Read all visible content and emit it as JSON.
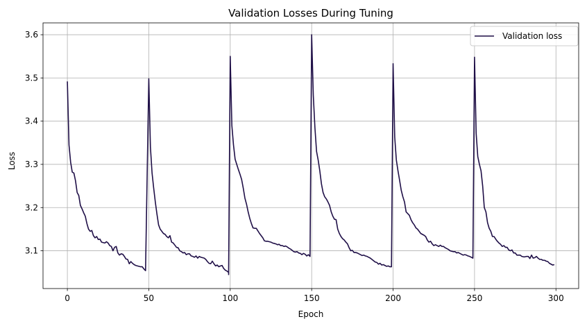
{
  "chart_data": {
    "type": "line",
    "title": "Validation Losses During Tuning",
    "xlabel": "Epoch",
    "ylabel": "Loss",
    "xlim": [
      -14.95,
      313.95
    ],
    "ylim": [
      3.0126,
      3.6274
    ],
    "xticks": [
      0,
      50,
      100,
      150,
      200,
      250,
      300
    ],
    "yticks": [
      3.1,
      3.2,
      3.3,
      3.4,
      3.5,
      3.6
    ],
    "grid": true,
    "legend_position": "top-right",
    "series": [
      {
        "name": "Validation loss",
        "color": "#1f0f47",
        "cycles": [
          {
            "start": 0,
            "values": [
              3.492,
              3.345,
              3.305,
              3.282,
              3.28,
              3.262,
              3.235,
              3.228,
              3.205,
              3.197,
              3.188,
              3.18,
              3.163,
              3.15,
              3.145,
              3.147,
              3.135,
              3.13,
              3.133,
              3.126,
              3.127,
              3.12,
              3.119,
              3.118,
              3.121,
              3.118,
              3.112,
              3.11,
              3.1,
              3.108,
              3.11,
              3.095,
              3.09,
              3.093,
              3.092,
              3.087,
              3.081,
              3.08,
              3.07,
              3.075,
              3.071,
              3.068,
              3.066,
              3.065,
              3.064,
              3.063,
              3.063,
              3.058,
              3.054
            ]
          },
          {
            "start": 50,
            "values": [
              3.498,
              3.34,
              3.28,
              3.245,
              3.213,
              3.185,
              3.16,
              3.15,
              3.145,
              3.14,
              3.138,
              3.133,
              3.13,
              3.135,
              3.12,
              3.118,
              3.113,
              3.108,
              3.107,
              3.1,
              3.098,
              3.095,
              3.096,
              3.091,
              3.093,
              3.093,
              3.088,
              3.087,
              3.085,
              3.088,
              3.083,
              3.087,
              3.085,
              3.084,
              3.083,
              3.08,
              3.075,
              3.071,
              3.07,
              3.076,
              3.07,
              3.065,
              3.067,
              3.063,
              3.065,
              3.066,
              3.059,
              3.055,
              3.053,
              3.05
            ]
          },
          {
            "start": 99,
            "values": [
              3.045,
              3.55,
              3.39,
              3.345,
              3.312,
              3.3,
              3.288,
              3.277,
              3.265,
              3.245,
              3.222,
              3.208,
              3.19,
              3.175,
              3.163,
              3.153,
              3.152,
              3.152,
              3.146,
              3.14,
              3.135,
              3.13,
              3.123,
              3.122,
              3.122,
              3.121,
              3.12,
              3.118,
              3.117,
              3.116,
              3.114,
              3.115,
              3.112,
              3.112,
              3.11,
              3.111,
              3.109,
              3.106,
              3.104,
              3.101,
              3.098,
              3.097,
              3.098,
              3.095,
              3.094,
              3.091,
              3.094,
              3.092,
              3.088,
              3.091,
              3.087
            ]
          },
          {
            "start": 150,
            "values": [
              3.6,
              3.46,
              3.385,
              3.33,
              3.31,
              3.285,
              3.255,
              3.235,
              3.225,
              3.22,
              3.213,
              3.205,
              3.19,
              3.18,
              3.173,
              3.172,
              3.15,
              3.14,
              3.133,
              3.128,
              3.125,
              3.12,
              3.116,
              3.107,
              3.1,
              3.101,
              3.096,
              3.096,
              3.095,
              3.093,
              3.091,
              3.089,
              3.09,
              3.088,
              3.087,
              3.085,
              3.083,
              3.08,
              3.077,
              3.074,
              3.073,
              3.069,
              3.071,
              3.067,
              3.068,
              3.066,
              3.064,
              3.065,
              3.063
            ]
          },
          {
            "start": 199,
            "values": [
              3.063,
              3.533,
              3.363,
              3.31,
              3.285,
              3.263,
              3.24,
              3.225,
              3.213,
              3.19,
              3.186,
              3.182,
              3.172,
              3.165,
              3.16,
              3.153,
              3.15,
              3.145,
              3.14,
              3.138,
              3.136,
              3.133,
              3.125,
              3.12,
              3.122,
              3.116,
              3.112,
              3.114,
              3.112,
              3.11,
              3.113,
              3.11,
              3.11,
              3.107,
              3.105,
              3.103,
              3.1,
              3.099,
              3.098,
              3.098,
              3.095,
              3.096,
              3.094,
              3.092,
              3.09,
              3.091,
              3.09,
              3.088,
              3.087,
              3.085,
              3.083
            ]
          },
          {
            "start": 250,
            "values": [
              3.548,
              3.372,
              3.318,
              3.3,
              3.285,
              3.25,
              3.2,
              3.19,
              3.165,
              3.152,
              3.145,
              3.133,
              3.133,
              3.127,
              3.122,
              3.118,
              3.115,
              3.11,
              3.112,
              3.108,
              3.108,
              3.102,
              3.1,
              3.102,
              3.095,
              3.095,
              3.09,
              3.09,
              3.09,
              3.087,
              3.086,
              3.086,
              3.087,
              3.087,
              3.082,
              3.09,
              3.083,
              3.084,
              3.087,
              3.083,
              3.08,
              3.08,
              3.078,
              3.078,
              3.076,
              3.075,
              3.071,
              3.069,
              3.067,
              3.068
            ]
          }
        ]
      }
    ]
  }
}
